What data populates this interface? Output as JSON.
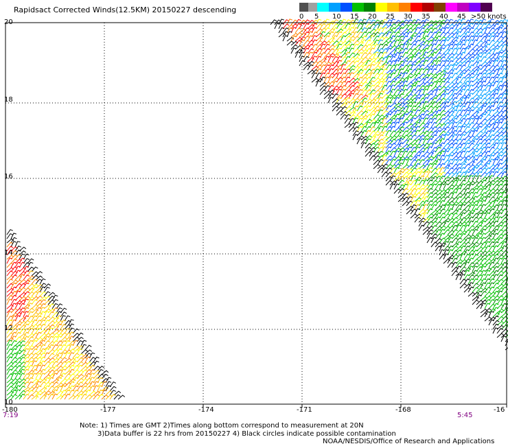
{
  "title": "Rapidsact Corrected Winds(12.5KM) 20150227 descending",
  "legend": {
    "colors": [
      "#505050",
      "#a0a0a0",
      "#00ffff",
      "#00a0ff",
      "#0050ff",
      "#00c000",
      "#008000",
      "#ffff00",
      "#ffc000",
      "#ff8000",
      "#ff0000",
      "#b00000",
      "#804000",
      "#ff00ff",
      "#c000c0",
      "#8000ff",
      "#500050"
    ],
    "labels": [
      "0",
      "5",
      "10",
      "15",
      "20",
      "25",
      "30",
      "35",
      "40",
      "45",
      ">50 knots"
    ]
  },
  "lat_labels": [
    "20",
    "18",
    "16",
    "14",
    "12",
    "10"
  ],
  "lon_labels": [
    "-180",
    "-177",
    "-174",
    "-171",
    "-168",
    "-16"
  ],
  "time_left": "7:19",
  "time_right": "5:45",
  "notes": {
    "line1": "Note: 1) Times are GMT 2)Times along bottom correspond to measurement at 20N",
    "line2": "3)Data buffer is 22 hrs from 20150227 4) Black circles indicate possible contamination"
  },
  "credit": "NOAA/NESDIS/Office of Research and Applications"
}
